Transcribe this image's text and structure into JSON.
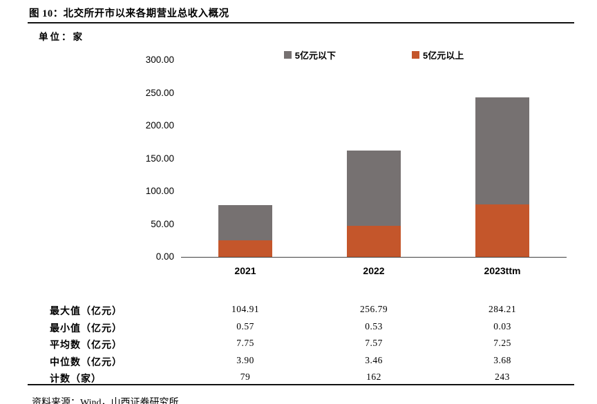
{
  "page": {
    "title": "图 10：北交所开市以来各期营业总收入概况",
    "unit_label": "单位：家",
    "source": "资料来源：Wind，山西证券研究所"
  },
  "chart_data": {
    "type": "bar",
    "stacked": true,
    "title": "北交所开市以来各期营业总收入概况",
    "xlabel": "",
    "ylabel": "单位：家",
    "categories": [
      "2021",
      "2022",
      "2023ttm"
    ],
    "series": [
      {
        "name": "5亿元以上",
        "color": "#C4562B",
        "values": [
          25,
          47,
          80
        ]
      },
      {
        "name": "5亿元以下",
        "color": "#767171",
        "values": [
          54,
          115,
          163
        ]
      }
    ],
    "totals": [
      79,
      162,
      243
    ],
    "ylim": [
      0,
      300
    ],
    "yticks": [
      "300.00",
      "250.00",
      "200.00",
      "150.00",
      "100.00",
      "50.00",
      "0.00"
    ],
    "legend": [
      {
        "label": "5亿元以下",
        "color": "#767171"
      },
      {
        "label": "5亿元以上",
        "color": "#C4562B"
      }
    ],
    "legend_position": "top",
    "grid": false
  },
  "table": {
    "rows": [
      {
        "label": "最大值（亿元）",
        "values": [
          "104.91",
          "256.79",
          "284.21"
        ]
      },
      {
        "label": "最小值（亿元）",
        "values": [
          "0.57",
          "0.53",
          "0.03"
        ]
      },
      {
        "label": "平均数（亿元）",
        "values": [
          "7.75",
          "7.57",
          "7.25"
        ]
      },
      {
        "label": "中位数（亿元）",
        "values": [
          "3.90",
          "3.46",
          "3.68"
        ]
      },
      {
        "label": "计数（家）",
        "values": [
          "79",
          "162",
          "243"
        ]
      }
    ]
  }
}
